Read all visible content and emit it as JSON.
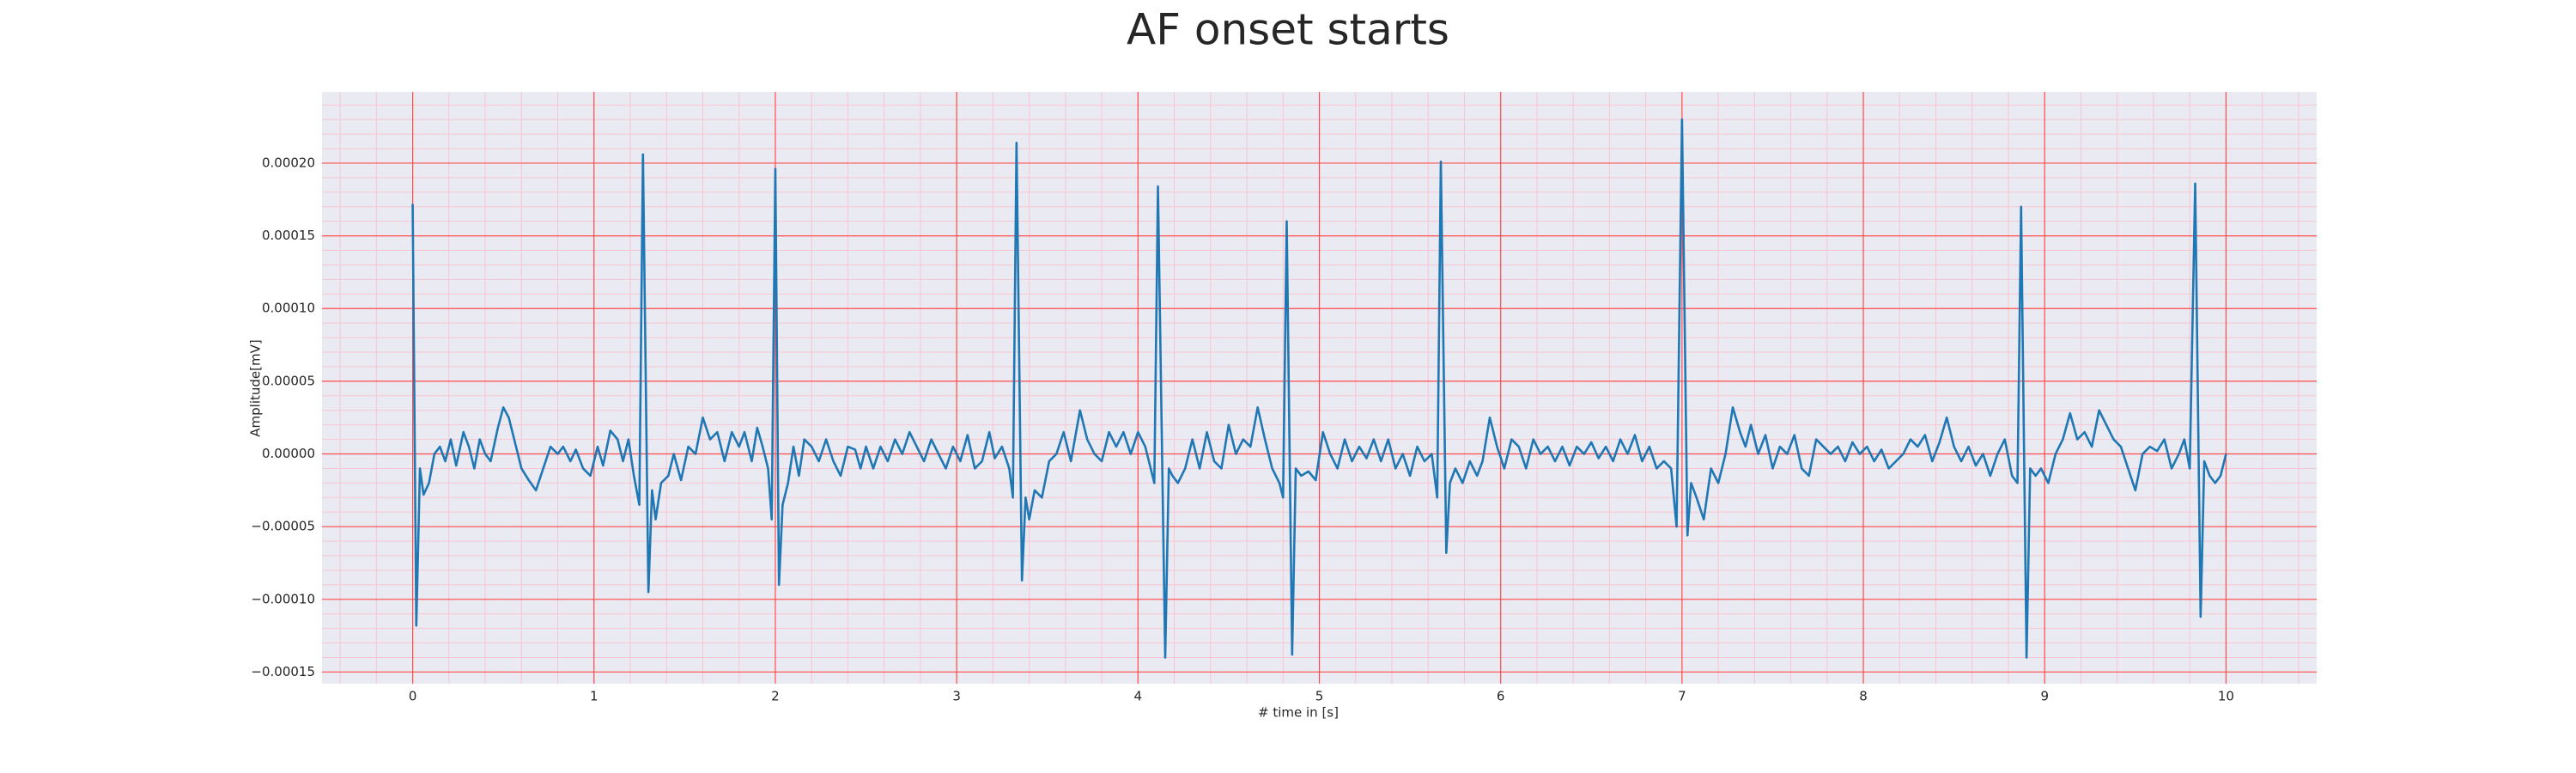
{
  "chart_data": {
    "type": "line",
    "title": "AF onset starts",
    "xlabel": "# time in [s]",
    "ylabel": "Amplitude[mV]",
    "color": "#1f77b4",
    "xlim": [
      -0.5,
      10.5
    ],
    "ylim": [
      -0.000158,
      0.000249
    ],
    "xticks": [
      0,
      1,
      2,
      3,
      4,
      5,
      6,
      7,
      8,
      9,
      10
    ],
    "yticks": [
      {
        "value": -0.00015,
        "label": "−0.00015"
      },
      {
        "value": -0.0001,
        "label": "−0.00010"
      },
      {
        "value": -5e-05,
        "label": "−0.00005"
      },
      {
        "value": 0,
        "label": "0.00000"
      },
      {
        "value": 5e-05,
        "label": "0.00005"
      },
      {
        "value": 0.0001,
        "label": "0.00010"
      },
      {
        "value": 0.00015,
        "label": "0.00015"
      },
      {
        "value": 0.0002,
        "label": "0.00020"
      }
    ],
    "grid": true,
    "minor_grid": {
      "x_step": 0.2,
      "y_step": 1e-05
    },
    "x": [
      0,
      0.02,
      0.04,
      0.06,
      0.09,
      0.12,
      0.15,
      0.18,
      0.21,
      0.24,
      0.28,
      0.31,
      0.34,
      0.37,
      0.4,
      0.43,
      0.47,
      0.5,
      0.53,
      0.56,
      0.6,
      0.64,
      0.68,
      0.72,
      0.76,
      0.8,
      0.83,
      0.87,
      0.9,
      0.94,
      0.98,
      1.02,
      1.05,
      1.09,
      1.13,
      1.16,
      1.19,
      1.22,
      1.25,
      1.27,
      1.3,
      1.32,
      1.34,
      1.37,
      1.41,
      1.44,
      1.48,
      1.52,
      1.56,
      1.6,
      1.64,
      1.68,
      1.72,
      1.76,
      1.8,
      1.83,
      1.87,
      1.9,
      1.93,
      1.96,
      1.98,
      2.0,
      2.02,
      2.04,
      2.07,
      2.1,
      2.13,
      2.16,
      2.2,
      2.24,
      2.28,
      2.32,
      2.36,
      2.4,
      2.44,
      2.47,
      2.5,
      2.54,
      2.58,
      2.62,
      2.66,
      2.7,
      2.74,
      2.78,
      2.82,
      2.86,
      2.9,
      2.94,
      2.98,
      3.02,
      3.06,
      3.1,
      3.14,
      3.18,
      3.21,
      3.25,
      3.29,
      3.31,
      3.33,
      3.36,
      3.38,
      3.4,
      3.43,
      3.47,
      3.51,
      3.55,
      3.59,
      3.63,
      3.68,
      3.72,
      3.76,
      3.8,
      3.84,
      3.88,
      3.92,
      3.96,
      4.0,
      4.04,
      4.07,
      4.09,
      4.11,
      4.15,
      4.17,
      4.19,
      4.22,
      4.26,
      4.3,
      4.34,
      4.38,
      4.42,
      4.46,
      4.5,
      4.54,
      4.58,
      4.62,
      4.66,
      4.7,
      4.74,
      4.78,
      4.8,
      4.82,
      4.85,
      4.87,
      4.9,
      4.94,
      4.98,
      5.02,
      5.06,
      5.1,
      5.14,
      5.18,
      5.22,
      5.26,
      5.3,
      5.34,
      5.38,
      5.42,
      5.46,
      5.5,
      5.54,
      5.58,
      5.62,
      5.65,
      5.67,
      5.7,
      5.72,
      5.75,
      5.79,
      5.83,
      5.87,
      5.9,
      5.94,
      5.98,
      6.02,
      6.06,
      6.1,
      6.14,
      6.18,
      6.22,
      6.26,
      6.3,
      6.34,
      6.38,
      6.42,
      6.46,
      6.5,
      6.54,
      6.58,
      6.62,
      6.66,
      6.7,
      6.74,
      6.78,
      6.82,
      6.86,
      6.9,
      6.94,
      6.97,
      7.0,
      7.03,
      7.05,
      7.08,
      7.12,
      7.16,
      7.2,
      7.24,
      7.28,
      7.32,
      7.35,
      7.38,
      7.42,
      7.46,
      7.5,
      7.54,
      7.58,
      7.62,
      7.66,
      7.7,
      7.74,
      7.78,
      7.82,
      7.86,
      7.9,
      7.94,
      7.98,
      8.02,
      8.06,
      8.1,
      8.14,
      8.18,
      8.22,
      8.26,
      8.3,
      8.34,
      8.38,
      8.42,
      8.46,
      8.5,
      8.54,
      8.58,
      8.62,
      8.66,
      8.7,
      8.74,
      8.78,
      8.82,
      8.85,
      8.87,
      8.9,
      8.92,
      8.95,
      8.98,
      9.02,
      9.06,
      9.1,
      9.14,
      9.18,
      9.22,
      9.26,
      9.3,
      9.34,
      9.38,
      9.42,
      9.46,
      9.5,
      9.54,
      9.58,
      9.62,
      9.66,
      9.7,
      9.74,
      9.77,
      9.8,
      9.83,
      9.86,
      9.88,
      9.91,
      9.94,
      9.97,
      10.0
    ],
    "values": [
      0.000172,
      -0.000118,
      -1e-05,
      -2.8e-05,
      -2e-05,
      0,
      5e-06,
      -5e-06,
      1e-05,
      -8e-06,
      1.5e-05,
      5e-06,
      -1e-05,
      1e-05,
      0,
      -5e-06,
      1.8e-05,
      3.2e-05,
      2.5e-05,
      1e-05,
      -1e-05,
      -1.8e-05,
      -2.5e-05,
      -1e-05,
      5e-06,
      0,
      5e-06,
      -5e-06,
      3e-06,
      -1e-05,
      -1.5e-05,
      5e-06,
      -8e-06,
      1.6e-05,
      1e-05,
      -5e-06,
      1e-05,
      -1.5e-05,
      -3.5e-05,
      0.000206,
      -9.5e-05,
      -2.5e-05,
      -4.5e-05,
      -2e-05,
      -1.5e-05,
      0,
      -1.8e-05,
      5e-06,
      0,
      2.5e-05,
      1e-05,
      1.5e-05,
      -5e-06,
      1.5e-05,
      5e-06,
      1.5e-05,
      -5e-06,
      1.8e-05,
      5e-06,
      -1e-05,
      -4.5e-05,
      0.000196,
      -9e-05,
      -3.5e-05,
      -2e-05,
      5e-06,
      -1.5e-05,
      1e-05,
      5e-06,
      -5e-06,
      1e-05,
      -5e-06,
      -1.5e-05,
      5e-06,
      3e-06,
      -1e-05,
      5e-06,
      -1e-05,
      5e-06,
      -5e-06,
      1e-05,
      0,
      1.5e-05,
      5e-06,
      -5e-06,
      1e-05,
      0,
      -1e-05,
      5e-06,
      -5e-06,
      1.3e-05,
      -1e-05,
      -5e-06,
      1.5e-05,
      -3e-06,
      5e-06,
      -1e-05,
      -3e-05,
      0.000214,
      -8.7e-05,
      -3e-05,
      -4.5e-05,
      -2.5e-05,
      -3e-05,
      -5e-06,
      0,
      1.5e-05,
      -5e-06,
      3e-05,
      1e-05,
      0,
      -5e-06,
      1.5e-05,
      5e-06,
      1.5e-05,
      0,
      1.5e-05,
      5e-06,
      -1e-05,
      -2e-05,
      0.000184,
      -0.00014,
      -1e-05,
      -1.5e-05,
      -2e-05,
      -1e-05,
      1e-05,
      -1e-05,
      1.5e-05,
      -5e-06,
      -1e-05,
      2e-05,
      0,
      1e-05,
      5e-06,
      3.2e-05,
      1e-05,
      -1e-05,
      -2e-05,
      -3e-05,
      0.00016,
      -0.000138,
      -1e-05,
      -1.5e-05,
      -1.2e-05,
      -1.8e-05,
      1.5e-05,
      0,
      -1e-05,
      1e-05,
      -5e-06,
      5e-06,
      -3e-06,
      1e-05,
      -5e-06,
      1e-05,
      -1e-05,
      0,
      -1.5e-05,
      5e-06,
      -5e-06,
      0,
      -3e-05,
      0.000201,
      -6.8e-05,
      -2e-05,
      -1e-05,
      -2e-05,
      -5e-06,
      -1.5e-05,
      -5e-06,
      2.5e-05,
      5e-06,
      -1e-05,
      1e-05,
      5e-06,
      -1e-05,
      1e-05,
      0,
      5e-06,
      -5e-06,
      5e-06,
      -8e-06,
      5e-06,
      0,
      8e-06,
      -3e-06,
      5e-06,
      -5e-06,
      1e-05,
      0,
      1.3e-05,
      -5e-06,
      5e-06,
      -1e-05,
      -5e-06,
      -1e-05,
      -5e-05,
      0.00023,
      -5.6e-05,
      -2e-05,
      -3e-05,
      -4.5e-05,
      -1e-05,
      -2e-05,
      0,
      3.2e-05,
      1.5e-05,
      5e-06,
      2e-05,
      0,
      1.3e-05,
      -1e-05,
      5e-06,
      0,
      1.3e-05,
      -1e-05,
      -1.5e-05,
      1e-05,
      5e-06,
      0,
      5e-06,
      -5e-06,
      8e-06,
      0,
      5e-06,
      -5e-06,
      3e-06,
      -1e-05,
      -5e-06,
      0,
      1e-05,
      5e-06,
      1.3e-05,
      -5e-06,
      8e-06,
      2.5e-05,
      5e-06,
      -5e-06,
      5e-06,
      -8e-06,
      0,
      -1.5e-05,
      0,
      1e-05,
      -1.5e-05,
      -2e-05,
      0.00017,
      -0.00014,
      -1e-05,
      -1.5e-05,
      -1e-05,
      -2e-05,
      0,
      1e-05,
      2.8e-05,
      1e-05,
      1.5e-05,
      5e-06,
      3e-05,
      2e-05,
      1e-05,
      5e-06,
      -1e-05,
      -2.5e-05,
      0,
      5e-06,
      2e-06,
      1e-05,
      -1e-05,
      0,
      1e-05,
      -1e-05,
      0.000186,
      -0.000112,
      -5e-06,
      -1.5e-05,
      -2e-05,
      -1.5e-05,
      0
    ]
  }
}
